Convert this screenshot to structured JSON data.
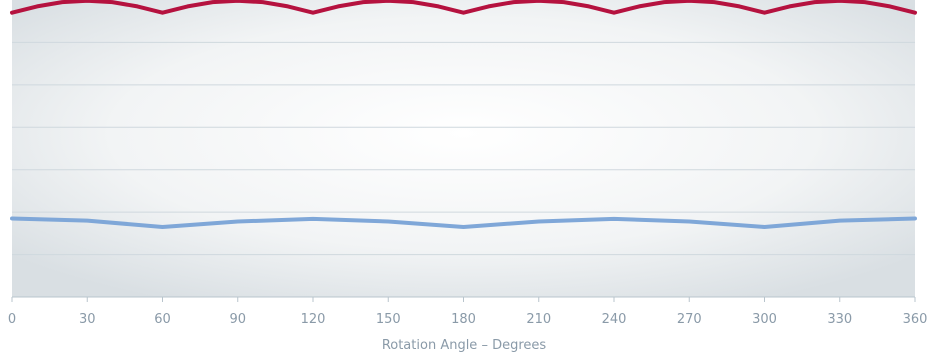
{
  "chart_data": {
    "type": "line",
    "title": "",
    "xlabel": "Rotation Angle – Degrees",
    "ylabel": "",
    "xlim": [
      0,
      360
    ],
    "ylim": [
      0,
      7
    ],
    "y_gridlines": [
      1,
      2,
      3,
      4,
      5,
      6
    ],
    "x_ticks": [
      0,
      30,
      60,
      90,
      120,
      150,
      180,
      210,
      240,
      270,
      300,
      330,
      360
    ],
    "grid": true,
    "legend": "none",
    "series": [
      {
        "color": "#b5123f",
        "x": [
          0,
          10,
          20,
          30,
          40,
          50,
          60,
          70,
          80,
          90,
          100,
          110,
          120,
          130,
          140,
          150,
          160,
          170,
          180,
          190,
          200,
          210,
          220,
          230,
          240,
          250,
          260,
          270,
          280,
          290,
          300,
          310,
          320,
          330,
          340,
          350,
          360
        ],
        "values": [
          6.7,
          6.85,
          6.95,
          6.98,
          6.95,
          6.85,
          6.7,
          6.85,
          6.95,
          6.98,
          6.95,
          6.85,
          6.7,
          6.85,
          6.95,
          6.98,
          6.95,
          6.85,
          6.7,
          6.85,
          6.95,
          6.98,
          6.95,
          6.85,
          6.7,
          6.85,
          6.95,
          6.98,
          6.95,
          6.85,
          6.7,
          6.85,
          6.95,
          6.98,
          6.95,
          6.85,
          6.7
        ]
      },
      {
        "color": "#7fa7d8",
        "x": [
          0,
          30,
          60,
          90,
          120,
          150,
          180,
          210,
          240,
          270,
          300,
          330,
          360
        ],
        "values": [
          1.85,
          1.8,
          1.65,
          1.78,
          1.84,
          1.78,
          1.65,
          1.78,
          1.84,
          1.78,
          1.65,
          1.8,
          1.85
        ]
      }
    ]
  }
}
